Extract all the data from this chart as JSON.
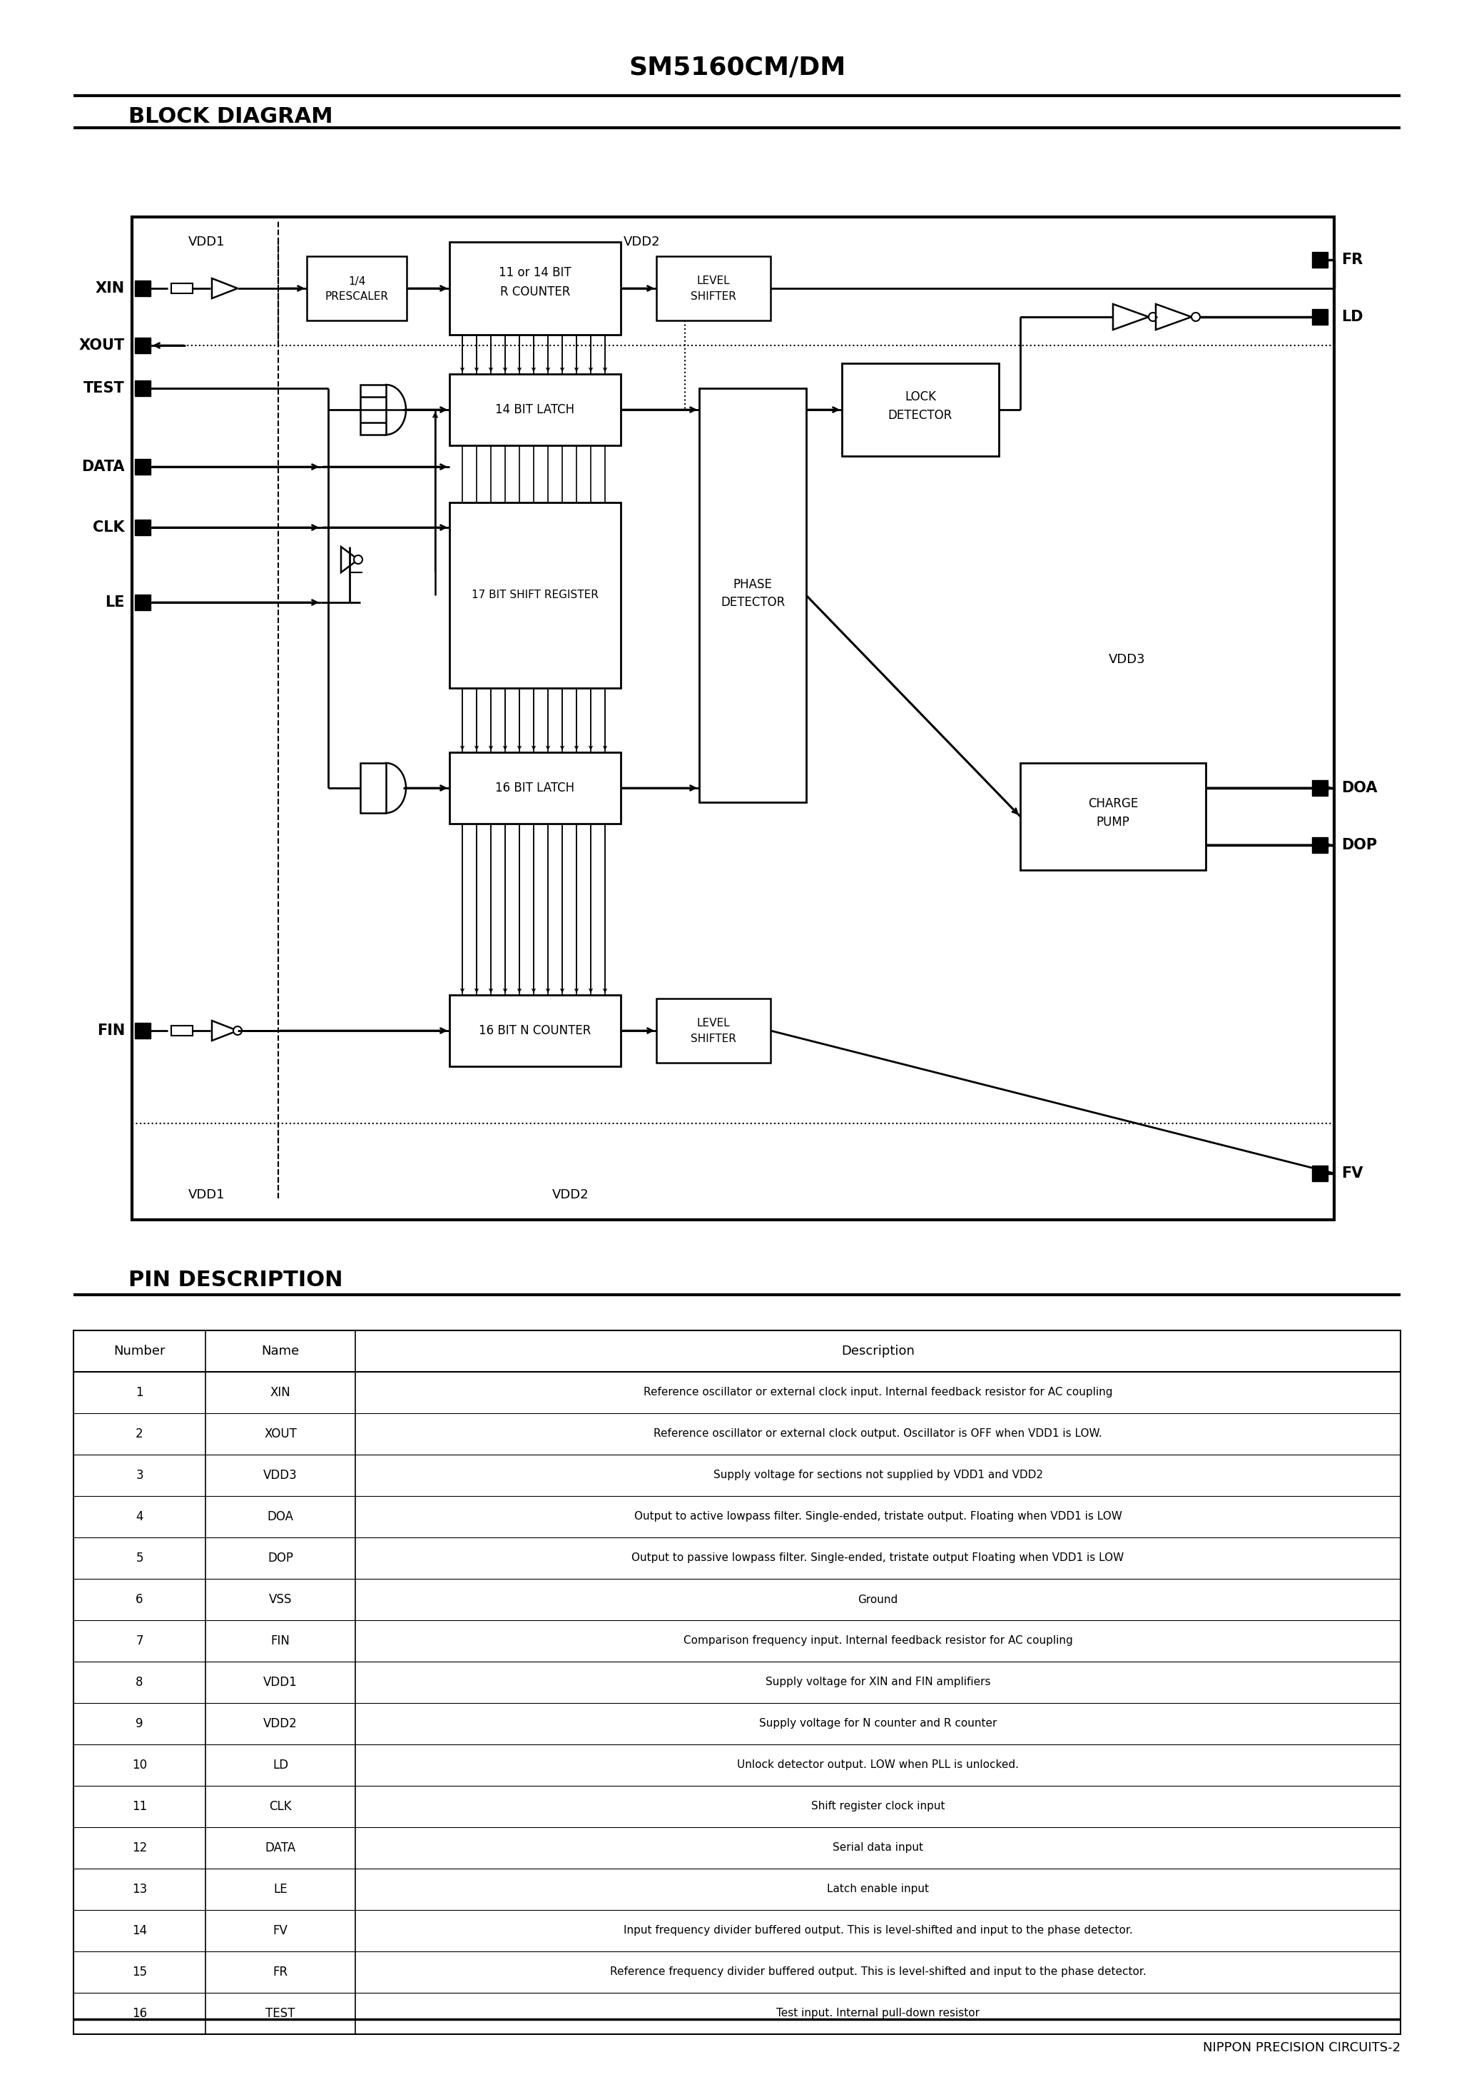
{
  "title": "SM5160CM/DM",
  "section1": "BLOCK DIAGRAM",
  "section2": "PIN DESCRIPTION",
  "footer": "NIPPON PRECISION CIRCUITS-2",
  "pin_table": {
    "headers": [
      "Number",
      "Name",
      "Description"
    ],
    "rows": [
      [
        "1",
        "XIN",
        "Reference oscillator or external clock input. Internal feedback resistor for AC coupling"
      ],
      [
        "2",
        "XOUT",
        "Reference oscillator or external clock output. Oscillator is OFF when VDD1 is LOW."
      ],
      [
        "3",
        "VDD3",
        "Supply voltage for sections not supplied by VDD1 and VDD2"
      ],
      [
        "4",
        "DOA",
        "Output to active lowpass filter. Single-ended, tristate output. Floating when VDD1 is LOW"
      ],
      [
        "5",
        "DOP",
        "Output to passive lowpass filter. Single-ended, tristate output Floating when VDD1 is LOW"
      ],
      [
        "6",
        "VSS",
        "Ground"
      ],
      [
        "7",
        "FIN",
        "Comparison frequency input. Internal feedback resistor for AC coupling"
      ],
      [
        "8",
        "VDD1",
        "Supply voltage for XIN and FIN amplifiers"
      ],
      [
        "9",
        "VDD2",
        "Supply voltage for N counter and R counter"
      ],
      [
        "10",
        "LD",
        "Unlock detector output. LOW when PLL is unlocked."
      ],
      [
        "11",
        "CLK",
        "Shift register clock input"
      ],
      [
        "12",
        "DATA",
        "Serial data input"
      ],
      [
        "13",
        "LE",
        "Latch enable input"
      ],
      [
        "14",
        "FV",
        "Input frequency divider buffered output. This is level-shifted and input to the phase detector."
      ],
      [
        "15",
        "FR",
        "Reference frequency divider buffered output. This is level-shifted and input to the phase detector."
      ],
      [
        "16",
        "TEST",
        "Test input. Internal pull-down resistor"
      ]
    ]
  },
  "bg_color": "#ffffff",
  "text_color": "#000000"
}
